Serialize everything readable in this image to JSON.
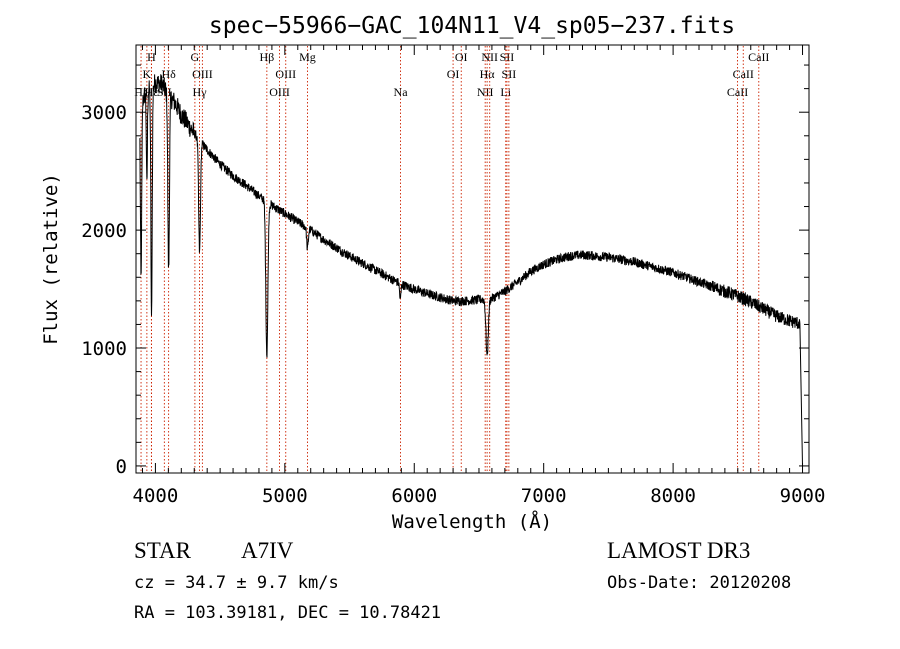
{
  "chart_data": {
    "type": "line",
    "title": "spec−55966−GAC_104N11_V4_sp05−237.fits",
    "xlabel": "Wavelength (Å)",
    "ylabel": "Flux (relative)",
    "xlim": [
      3850,
      9050
    ],
    "ylim": [
      -60,
      3570
    ],
    "xticks": [
      4000,
      5000,
      6000,
      7000,
      8000,
      9000
    ],
    "yticks": [
      0,
      1000,
      2000,
      3000
    ],
    "xtick_labels": [
      "4000",
      "5000",
      "6000",
      "7000",
      "8000",
      "9000"
    ],
    "ytick_labels": [
      "0",
      "1000",
      "2000",
      "3000"
    ],
    "line_color": "#000000",
    "marker_color": "#cc2200",
    "spectrum": {
      "continuum_x": [
        3880,
        3920,
        3960,
        4000,
        4050,
        4100,
        4150,
        4200,
        4300,
        4400,
        4500,
        4600,
        4700,
        4800,
        4900,
        5000,
        5100,
        5200,
        5300,
        5400,
        5500,
        5600,
        5700,
        5800,
        5900,
        6000,
        6100,
        6200,
        6300,
        6400,
        6500,
        6600,
        6700,
        6800,
        6900,
        7000,
        7100,
        7200,
        7300,
        7400,
        7500,
        7600,
        7700,
        7800,
        7900,
        8000,
        8100,
        8200,
        8300,
        8400,
        8500,
        8600,
        8700,
        8800,
        8900,
        8970
      ],
      "continuum_y": [
        3050,
        3150,
        3200,
        3250,
        3240,
        3150,
        3080,
        2980,
        2820,
        2680,
        2560,
        2460,
        2380,
        2290,
        2210,
        2140,
        2070,
        2000,
        1920,
        1850,
        1780,
        1720,
        1660,
        1600,
        1540,
        1500,
        1460,
        1430,
        1400,
        1400,
        1410,
        1420,
        1480,
        1560,
        1650,
        1710,
        1750,
        1780,
        1790,
        1780,
        1770,
        1750,
        1730,
        1700,
        1670,
        1640,
        1600,
        1560,
        1520,
        1480,
        1440,
        1390,
        1330,
        1270,
        1230,
        1210
      ],
      "absorption_lines": [
        {
          "center": 3889,
          "depth": 1500,
          "width": 5
        },
        {
          "center": 3934,
          "depth": 800,
          "width": 4
        },
        {
          "center": 3970,
          "depth": 2000,
          "width": 5
        },
        {
          "center": 4102,
          "depth": 1500,
          "width": 6
        },
        {
          "center": 4341,
          "depth": 950,
          "width": 7
        },
        {
          "center": 4861,
          "depth": 1300,
          "width": 8
        },
        {
          "center": 5175,
          "depth": 180,
          "width": 6
        },
        {
          "center": 5892,
          "depth": 140,
          "width": 5
        },
        {
          "center": 6563,
          "depth": 480,
          "width": 9
        }
      ],
      "noise_amplitude": 40,
      "end_drop": {
        "start": 8980,
        "end": 9000,
        "final_value": 0
      }
    },
    "line_markers": [
      {
        "label": "Hζ",
        "wavelength": 3889,
        "row": 3
      },
      {
        "label": "K",
        "wavelength": 3934,
        "row": 2
      },
      {
        "label": "H",
        "wavelength": 3969,
        "row": 1
      },
      {
        "label": "Hε",
        "wavelength": 3970,
        "row": 3
      },
      {
        "label": "SII",
        "wavelength": 4069,
        "row": 3
      },
      {
        "label": "Hδ",
        "wavelength": 4102,
        "row": 2
      },
      {
        "label": "G",
        "wavelength": 4305,
        "row": 1
      },
      {
        "label": "Hγ",
        "wavelength": 4341,
        "row": 3
      },
      {
        "label": "OIII",
        "wavelength": 4363,
        "row": 2
      },
      {
        "label": "Hβ",
        "wavelength": 4861,
        "row": 1
      },
      {
        "label": "OIII",
        "wavelength": 4959,
        "row": 3
      },
      {
        "label": "OIII",
        "wavelength": 5007,
        "row": 2
      },
      {
        "label": "Mg",
        "wavelength": 5175,
        "row": 1
      },
      {
        "label": "Na",
        "wavelength": 5894,
        "row": 3
      },
      {
        "label": "OI",
        "wavelength": 6300,
        "row": 2
      },
      {
        "label": "OI",
        "wavelength": 6363,
        "row": 1
      },
      {
        "label": "NII",
        "wavelength": 6548,
        "row": 3
      },
      {
        "label": "Hα",
        "wavelength": 6563,
        "row": 2
      },
      {
        "label": "NII",
        "wavelength": 6583,
        "row": 1
      },
      {
        "label": "Li",
        "wavelength": 6707,
        "row": 3
      },
      {
        "label": "SII",
        "wavelength": 6716,
        "row": 1
      },
      {
        "label": "SII",
        "wavelength": 6731,
        "row": 2
      },
      {
        "label": "CaII",
        "wavelength": 8498,
        "row": 3
      },
      {
        "label": "CaII",
        "wavelength": 8542,
        "row": 2
      },
      {
        "label": "CaII",
        "wavelength": 8662,
        "row": 1
      }
    ]
  },
  "info": {
    "class": "STAR",
    "subclass": "A7IV",
    "cz": "cz = 34.7 ± 9.7 km/s",
    "coords": "RA = 103.39181, DEC =  10.78421",
    "survey": "LAMOST DR3",
    "obs_date": "Obs-Date: 20120208"
  }
}
